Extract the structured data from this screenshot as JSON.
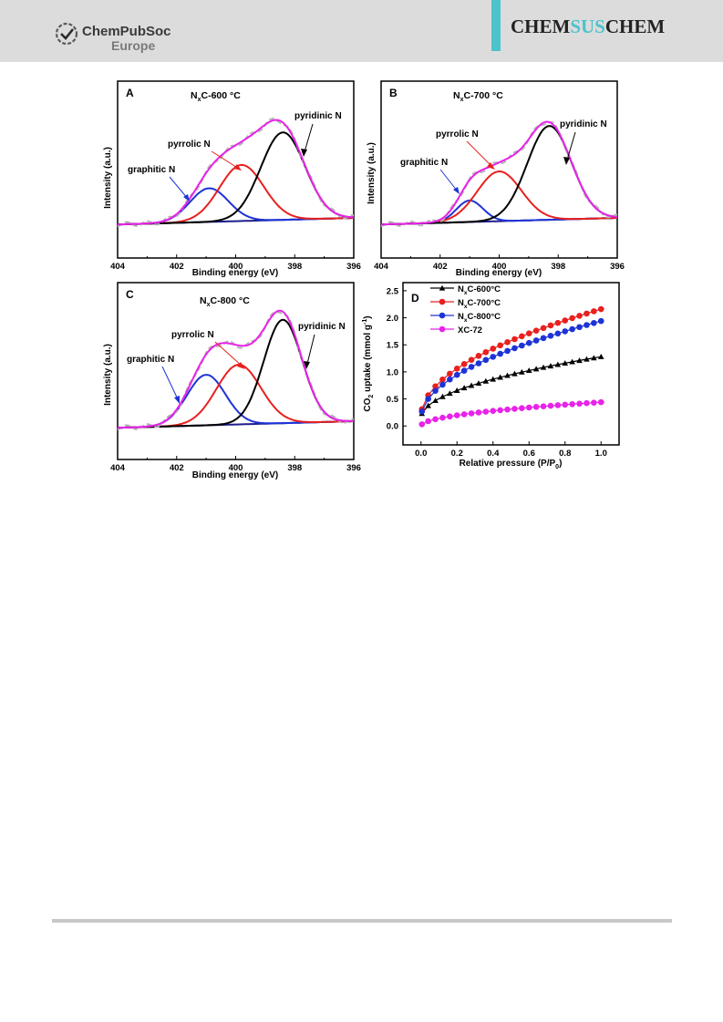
{
  "header": {
    "publisher_line1": "ChemPubSoc",
    "publisher_line2": "Europe",
    "journal_a": "CHEM",
    "journal_b": "SUS",
    "journal_c": "CHEM",
    "colors": {
      "band": "#dcdcdc",
      "accent": "#4cc3cc"
    }
  },
  "xps_axis": {
    "xlabel": "Binding energy (eV)",
    "ylabel": "Intensity (a.u.)",
    "ticks": [
      "404",
      "402",
      "400",
      "398",
      "396"
    ]
  },
  "panels": {
    "A": {
      "letter": "A",
      "title_n": "N",
      "title_sub": "x",
      "title_rest": "C-600 °C",
      "graphitic": "graphitic N",
      "pyrrolic": "pyrrolic N",
      "pyridinic": "pyridinic N"
    },
    "B": {
      "letter": "B",
      "title_n": "N",
      "title_sub": "x",
      "title_rest": "C-700 °C",
      "graphitic": "graphitic N",
      "pyrrolic": "pyrrolic N",
      "pyridinic": "pyridinic N"
    },
    "C": {
      "letter": "C",
      "title_n": "N",
      "title_sub": "x",
      "title_rest": "C-800 °C",
      "graphitic": "graphitic N",
      "pyrrolic": "pyrrolic N",
      "pyridinic": "pyridinic N"
    },
    "D": {
      "letter": "D",
      "xlabel": "Relative pressure (P/P",
      "xlabel_sub": "0",
      "xlabel_end": ")",
      "ylabel_a": "CO",
      "ylabel_sub": "2",
      "ylabel_b": " uptake (mmol g",
      "ylabel_sup": "-1",
      "ylabel_c": ")",
      "xticks": [
        "0.0",
        "0.2",
        "0.4",
        "0.6",
        "0.8",
        "1.0"
      ],
      "yticks": [
        "0.0",
        "0.5",
        "1.0",
        "1.5",
        "2.0",
        "2.5"
      ],
      "legend": [
        {
          "n": "N",
          "sub": "x",
          "rest": "C-600°C"
        },
        {
          "n": "N",
          "sub": "x",
          "rest": "C-700°C"
        },
        {
          "n": "N",
          "sub": "x",
          "rest": "C-800°C"
        },
        {
          "n": "",
          "sub": "",
          "rest": "XC-72"
        }
      ]
    }
  },
  "chart_data": [
    {
      "type": "line",
      "panel": "A",
      "xlabel": "Binding energy (eV)",
      "ylabel": "Intensity (a.u.)",
      "xlim": [
        404,
        396
      ],
      "xreversed": true,
      "components": [
        {
          "name": "pyridinic N",
          "center": 398.4,
          "width": 0.75,
          "height": 0.78,
          "color": "#000000"
        },
        {
          "name": "pyrrolic N",
          "center": 399.8,
          "width": 0.75,
          "height": 0.5,
          "color": "#e8201e"
        },
        {
          "name": "graphitic N",
          "center": 400.9,
          "width": 0.65,
          "height": 0.3,
          "color": "#1d33d6"
        }
      ],
      "series_colors": {
        "envelope": "#e823e8",
        "raw": "#b4b4b4",
        "baseline": "#1f1c8c"
      }
    },
    {
      "type": "line",
      "panel": "B",
      "xlabel": "Binding energy (eV)",
      "ylabel": "Intensity (a.u.)",
      "xlim": [
        404,
        396
      ],
      "xreversed": true,
      "components": [
        {
          "name": "pyridinic N",
          "center": 398.3,
          "width": 0.75,
          "height": 0.83,
          "color": "#000000"
        },
        {
          "name": "pyrrolic N",
          "center": 400.0,
          "width": 0.75,
          "height": 0.44,
          "color": "#e8201e"
        },
        {
          "name": "graphitic N",
          "center": 401.0,
          "width": 0.45,
          "height": 0.19,
          "color": "#1d33d6"
        }
      ],
      "series_colors": {
        "envelope": "#e823e8",
        "raw": "#b4b4b4",
        "baseline": "#1f1c8c"
      }
    },
    {
      "type": "line",
      "panel": "C",
      "xlabel": "Binding energy (eV)",
      "ylabel": "Intensity (a.u.)",
      "xlim": [
        404,
        396
      ],
      "xreversed": true,
      "components": [
        {
          "name": "pyridinic N",
          "center": 398.4,
          "width": 0.65,
          "height": 0.9,
          "color": "#000000"
        },
        {
          "name": "pyrrolic N",
          "center": 399.9,
          "width": 0.75,
          "height": 0.52,
          "color": "#e8201e"
        },
        {
          "name": "graphitic N",
          "center": 401.0,
          "width": 0.65,
          "height": 0.44,
          "color": "#1d33d6"
        }
      ],
      "series_colors": {
        "envelope": "#e823e8",
        "raw": "#b4b4b4",
        "baseline": "#1f1c8c"
      }
    },
    {
      "type": "scatter",
      "panel": "D",
      "xlabel": "Relative pressure (P/P0)",
      "ylabel": "CO2 uptake (mmol g-1)",
      "xlim": [
        -0.1,
        1.1
      ],
      "ylim": [
        -0.35,
        2.65
      ],
      "series": [
        {
          "name": "NxC-600°C",
          "marker": "triangle",
          "color": "#000000",
          "y_at_1": 1.28,
          "y_at_0": 0.15
        },
        {
          "name": "NxC-700°C",
          "marker": "circle",
          "color": "#e8201e",
          "y_at_1": 2.16,
          "y_at_0": 0.17
        },
        {
          "name": "NxC-800°C",
          "marker": "circle",
          "color": "#1d33d6",
          "y_at_1": 1.94,
          "y_at_0": 0.14
        },
        {
          "name": "XC-72",
          "marker": "circle",
          "color": "#e823e8",
          "y_at_1": 0.44,
          "y_at_0": 0.0
        }
      ]
    }
  ]
}
